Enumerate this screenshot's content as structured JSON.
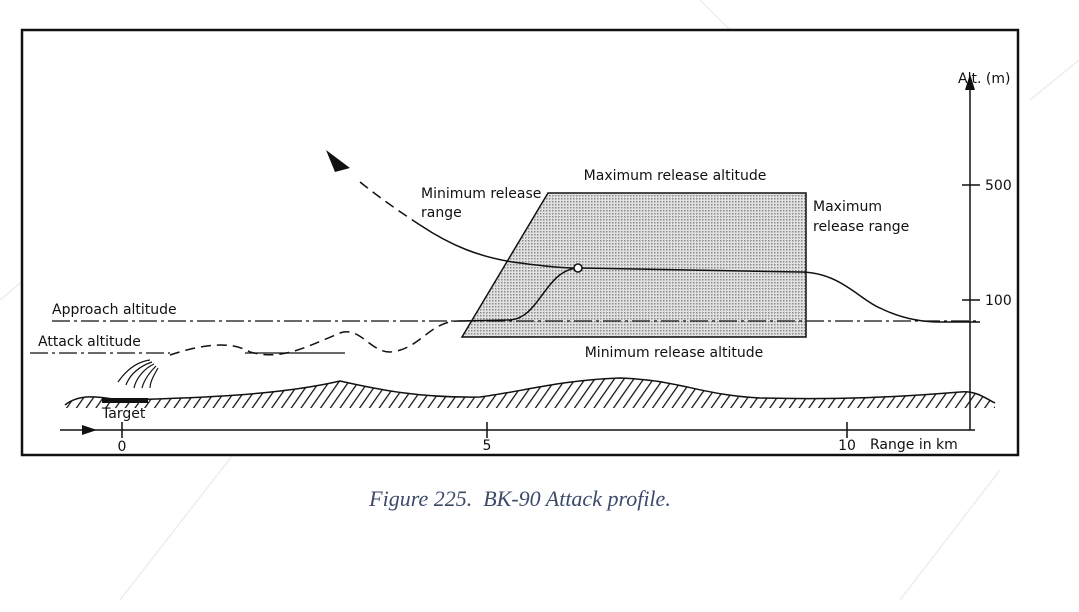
{
  "figure": {
    "axis": {
      "altitude_label": "Alt. (m)",
      "altitude_ticks": [
        "500",
        "100"
      ],
      "range_label": "Range in km",
      "range_ticks": [
        "0",
        "5",
        "10"
      ]
    },
    "labels": {
      "max_release_altitude": "Maximum release altitude",
      "min_release_range": [
        "Minimum release",
        "range"
      ],
      "max_release_range": [
        "Maximum",
        "release range"
      ],
      "approach_altitude": "Approach altitude",
      "attack_altitude": "Attack altitude",
      "min_release_altitude": "Minimum release altitude",
      "target": "Target"
    },
    "caption": "Figure 225.  BK-90 Attack profile."
  }
}
